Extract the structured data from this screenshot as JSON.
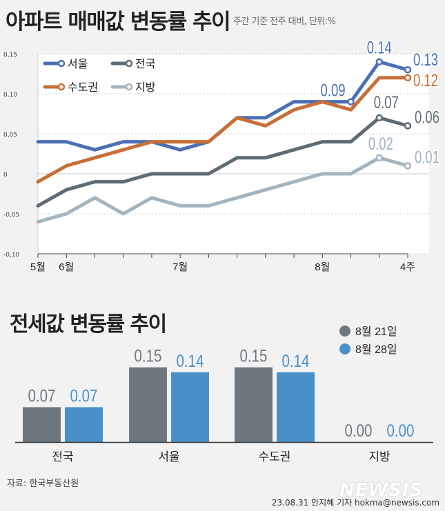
{
  "title_line": "아파트 매매값 변동률 추이",
  "subtitle_line": "주간 기준 전주 대비, 단위:%",
  "title_bar": "전세값 변동률 추이",
  "source": "자료: 한국부동산원",
  "credit": "23.08.31 안지혜 기자 hokma@newsis.com",
  "watermark": "NEWSIS",
  "colors": {
    "seoul": "#4a6fb5",
    "national": "#5d6b73",
    "metro": "#c76f36",
    "provincial": "#a3b4bf",
    "bar_prev": "#6c7780",
    "bar_curr": "#4a90c8"
  },
  "chart_data": [
    {
      "type": "line",
      "title": "아파트 매매값 변동률 추이",
      "subtitle": "주간 기준 전주 대비, 단위:%",
      "ylim": [
        -0.1,
        0.15
      ],
      "yticks": [
        0.15,
        0.1,
        0.05,
        0,
        -0.05,
        -0.1
      ],
      "ytick_labels": [
        "0,15",
        "0,10",
        "0,05",
        "0",
        "-0,05",
        "-0,10"
      ],
      "x_tick_labels": [
        {
          "index": 0,
          "label": "5월"
        },
        {
          "index": 1,
          "label": "6월"
        },
        {
          "index": 5,
          "label": "7월"
        },
        {
          "index": 10,
          "label": "8월"
        },
        {
          "index": 13,
          "label": "4주"
        }
      ],
      "legend_position": "top-left",
      "series": [
        {
          "key": "seoul",
          "name": "서울",
          "values": [
            0.04,
            0.04,
            0.03,
            0.04,
            0.04,
            0.03,
            0.04,
            0.07,
            0.07,
            0.09,
            0.09,
            0.09,
            0.14,
            0.13
          ],
          "labels": [
            {
              "index": 11,
              "text": "0.09"
            },
            {
              "index": 12,
              "text": "0.14"
            },
            {
              "index": 13,
              "text": "0.13"
            }
          ]
        },
        {
          "key": "metro",
          "name": "수도권",
          "values": [
            -0.01,
            0.01,
            0.02,
            0.03,
            0.04,
            0.04,
            0.04,
            0.07,
            0.06,
            0.08,
            0.09,
            0.08,
            0.12,
            0.12
          ],
          "labels": [
            {
              "index": 13,
              "text": "0.12"
            }
          ]
        },
        {
          "key": "national",
          "name": "전국",
          "values": [
            -0.04,
            -0.02,
            -0.01,
            -0.01,
            0.0,
            0.0,
            0.0,
            0.02,
            0.02,
            0.03,
            0.04,
            0.04,
            0.07,
            0.06
          ],
          "labels": [
            {
              "index": 12,
              "text": "0.07"
            },
            {
              "index": 13,
              "text": "0.06"
            }
          ]
        },
        {
          "key": "provincial",
          "name": "지방",
          "values": [
            -0.06,
            -0.05,
            -0.03,
            -0.05,
            -0.03,
            -0.04,
            -0.04,
            -0.03,
            -0.02,
            -0.01,
            0.0,
            0.0,
            0.02,
            0.01
          ],
          "labels": [
            {
              "index": 12,
              "text": "0.02"
            },
            {
              "index": 13,
              "text": "0.01"
            }
          ]
        }
      ]
    },
    {
      "type": "bar",
      "title": "전세값 변동률 추이",
      "categories": [
        "전국",
        "서울",
        "수도권",
        "지방"
      ],
      "legend_position": "top-right",
      "ylim": [
        0,
        0.18
      ],
      "series": [
        {
          "name": "8월 21일",
          "values": [
            0.07,
            0.15,
            0.15,
            0.0
          ],
          "labels": [
            "0.07",
            "0.15",
            "0.15",
            "0.00"
          ]
        },
        {
          "name": "8월 28일",
          "values": [
            0.07,
            0.14,
            0.14,
            0.0
          ],
          "labels": [
            "0.07",
            "0.14",
            "0.14",
            "0.00"
          ]
        }
      ]
    }
  ]
}
